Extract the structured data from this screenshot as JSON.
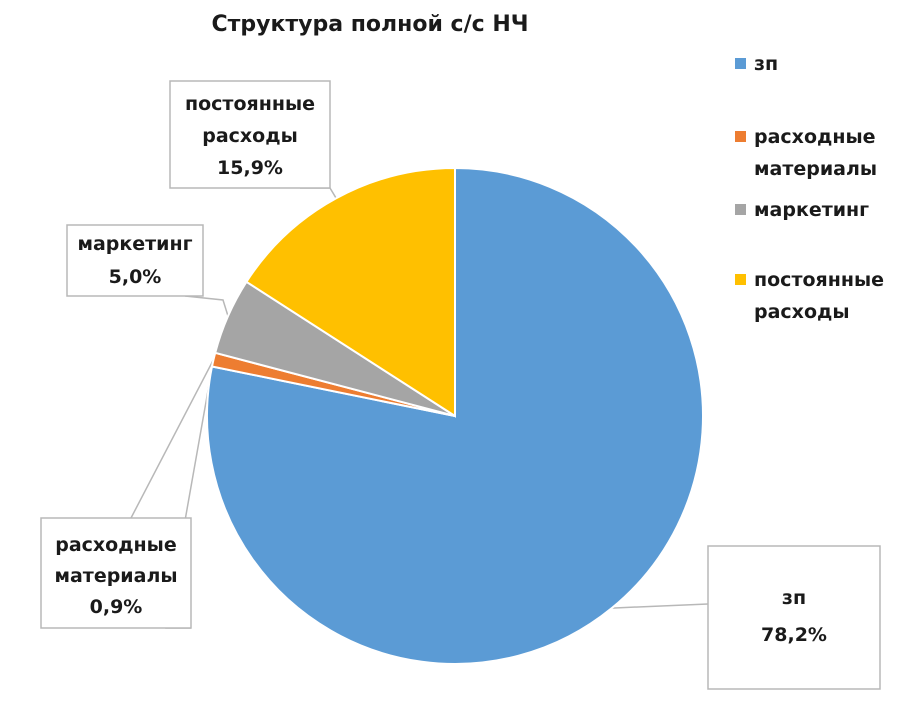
{
  "chart_data": {
    "type": "pie",
    "title": "Структура полной с/с НЧ",
    "slices": [
      {
        "label": "зп",
        "legend": [
          "зп"
        ],
        "label_lines": [
          "зп"
        ],
        "value": 78.2,
        "value_label": "78,2%",
        "color": "#5B9BD5"
      },
      {
        "label": "расходные материалы",
        "legend": [
          "расходные",
          "материалы"
        ],
        "label_lines": [
          "расходные",
          "материалы"
        ],
        "value": 0.9,
        "value_label": "0,9%",
        "color": "#ED7D31"
      },
      {
        "label": "маркетинг",
        "legend": [
          "маркетинг"
        ],
        "label_lines": [
          "маркетинг"
        ],
        "value": 5.0,
        "value_label": "5,0%",
        "color": "#A5A5A5"
      },
      {
        "label": "постоянные расходы",
        "legend": [
          "постоянные",
          "расходы"
        ],
        "label_lines": [
          "постоянные",
          "расходы"
        ],
        "value": 15.9,
        "value_label": "15,9%",
        "color": "#FFC000"
      }
    ],
    "legend_position": "right",
    "start_angle": "top",
    "direction": "clockwise"
  }
}
